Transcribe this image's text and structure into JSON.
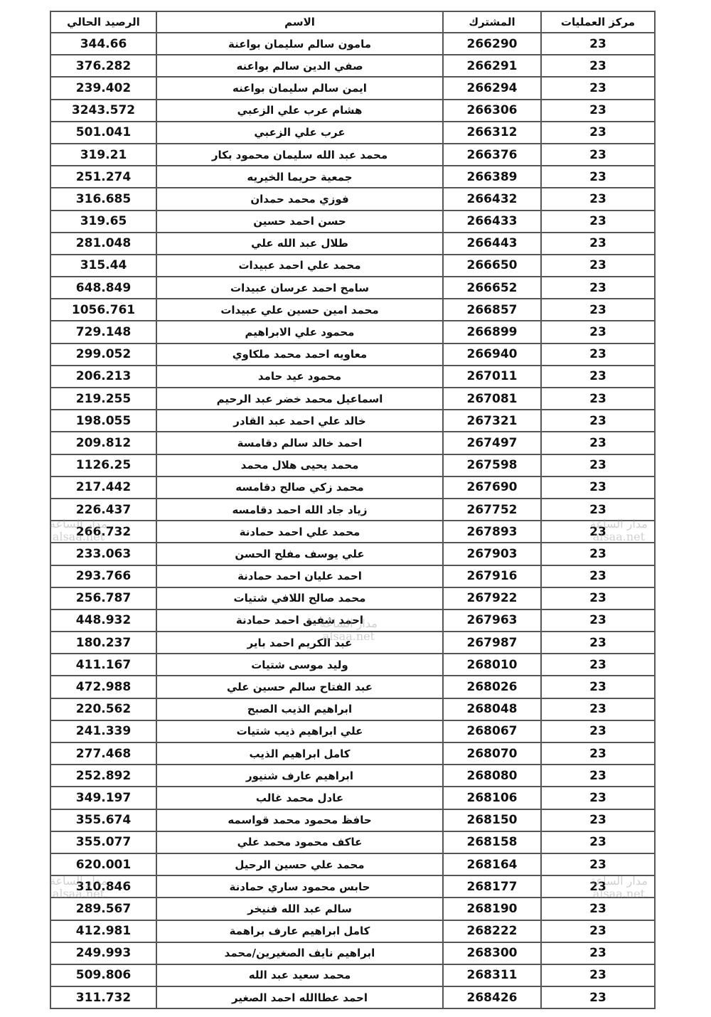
{
  "headers": {
    "center": "مركز العمليات",
    "subscriber": "المشترك",
    "name": "الاسم",
    "balance": "الرصيد الحالي"
  },
  "watermark": {
    "ar": "مدار الساعة",
    "en": "alsaa.net"
  },
  "rows": [
    {
      "center": "23",
      "subscriber": "266290",
      "name": "مامون سالم سليمان بواعنة",
      "balance": "344.66"
    },
    {
      "center": "23",
      "subscriber": "266291",
      "name": "صفي الدين سالم بواعنه",
      "balance": "376.282"
    },
    {
      "center": "23",
      "subscriber": "266294",
      "name": "ايمن سالم سليمان بواعنه",
      "balance": "239.402"
    },
    {
      "center": "23",
      "subscriber": "266306",
      "name": "هشام عرب علي الزعبي",
      "balance": "3243.572"
    },
    {
      "center": "23",
      "subscriber": "266312",
      "name": "عرب علي الزعبي",
      "balance": "501.041"
    },
    {
      "center": "23",
      "subscriber": "266376",
      "name": "محمد عبد الله سليمان محمود بكار",
      "balance": "319.21"
    },
    {
      "center": "23",
      "subscriber": "266389",
      "name": "جمعية حريما الخيريه",
      "balance": "251.274"
    },
    {
      "center": "23",
      "subscriber": "266432",
      "name": "فوزي محمد حمدان",
      "balance": "316.685"
    },
    {
      "center": "23",
      "subscriber": "266433",
      "name": "حسن احمد حسين",
      "balance": "319.65"
    },
    {
      "center": "23",
      "subscriber": "266443",
      "name": "طلال عبد الله علي",
      "balance": "281.048"
    },
    {
      "center": "23",
      "subscriber": "266650",
      "name": "محمد علي احمد عبيدات",
      "balance": "315.44"
    },
    {
      "center": "23",
      "subscriber": "266652",
      "name": "سامح احمد عرسان عبيدات",
      "balance": "648.849"
    },
    {
      "center": "23",
      "subscriber": "266857",
      "name": "محمد امين حسين علي عبيدات",
      "balance": "1056.761"
    },
    {
      "center": "23",
      "subscriber": "266899",
      "name": "محمود علي الابراهيم",
      "balance": "729.148"
    },
    {
      "center": "23",
      "subscriber": "266940",
      "name": "معاويه احمد محمد ملكاوي",
      "balance": "299.052"
    },
    {
      "center": "23",
      "subscriber": "267011",
      "name": "محمود عيد حامد",
      "balance": "206.213"
    },
    {
      "center": "23",
      "subscriber": "267081",
      "name": "اسماعيل محمد خضر عبد الرحيم",
      "balance": "219.255"
    },
    {
      "center": "23",
      "subscriber": "267321",
      "name": "خالد علي احمد عبد القادر",
      "balance": "198.055"
    },
    {
      "center": "23",
      "subscriber": "267497",
      "name": "احمد خالد سالم دقامسة",
      "balance": "209.812"
    },
    {
      "center": "23",
      "subscriber": "267598",
      "name": "محمد يحيى هلال محمد",
      "balance": "1126.25"
    },
    {
      "center": "23",
      "subscriber": "267690",
      "name": "محمد زكي صالح دقامسه",
      "balance": "217.442"
    },
    {
      "center": "23",
      "subscriber": "267752",
      "name": "زياد جاد الله احمد دقامسه",
      "balance": "226.437"
    },
    {
      "center": "23",
      "subscriber": "267893",
      "name": "محمد علي احمد حمادنة",
      "balance": "266.732"
    },
    {
      "center": "23",
      "subscriber": "267903",
      "name": "علي يوسف مفلح الحسن",
      "balance": "233.063"
    },
    {
      "center": "23",
      "subscriber": "267916",
      "name": "احمد عليان احمد حمادنة",
      "balance": "293.766"
    },
    {
      "center": "23",
      "subscriber": "267922",
      "name": "محمد صالح اللافي شتيات",
      "balance": "256.787"
    },
    {
      "center": "23",
      "subscriber": "267963",
      "name": "احمد شفيق احمد حمادنة",
      "balance": "448.932"
    },
    {
      "center": "23",
      "subscriber": "267987",
      "name": "عبد الكريم احمد باير",
      "balance": "180.237"
    },
    {
      "center": "23",
      "subscriber": "268010",
      "name": "وليد موسى شتيات",
      "balance": "411.167"
    },
    {
      "center": "23",
      "subscriber": "268026",
      "name": "عبد الفتاح سالم حسين علي",
      "balance": "472.988"
    },
    {
      "center": "23",
      "subscriber": "268048",
      "name": "ابراهيم الذيب الصبح",
      "balance": "220.562"
    },
    {
      "center": "23",
      "subscriber": "268067",
      "name": "علي ابراهيم ذيب شتيات",
      "balance": "241.339"
    },
    {
      "center": "23",
      "subscriber": "268070",
      "name": "كامل ابراهيم الذيب",
      "balance": "277.468"
    },
    {
      "center": "23",
      "subscriber": "268080",
      "name": "ابراهيم عارف شنيور",
      "balance": "252.892"
    },
    {
      "center": "23",
      "subscriber": "268106",
      "name": "عادل محمد غالب",
      "balance": "349.197"
    },
    {
      "center": "23",
      "subscriber": "268150",
      "name": "حافظ محمود محمد قواسمه",
      "balance": "355.674"
    },
    {
      "center": "23",
      "subscriber": "268158",
      "name": "عاكف محمود محمد علي",
      "balance": "355.077"
    },
    {
      "center": "23",
      "subscriber": "268164",
      "name": "محمد علي حسين الرحيل",
      "balance": "620.001"
    },
    {
      "center": "23",
      "subscriber": "268177",
      "name": "حابس محمود ساري حمادنة",
      "balance": "310.846"
    },
    {
      "center": "23",
      "subscriber": "268190",
      "name": "سالم عبد الله فنيخر",
      "balance": "289.567"
    },
    {
      "center": "23",
      "subscriber": "268222",
      "name": "كامل ابراهيم عارف براهمة",
      "balance": "412.981"
    },
    {
      "center": "23",
      "subscriber": "268300",
      "name": "ابراهيم نايف الصغيرين/محمد",
      "balance": "249.993"
    },
    {
      "center": "23",
      "subscriber": "268311",
      "name": "محمد سعيد عبد الله",
      "balance": "509.806"
    },
    {
      "center": "23",
      "subscriber": "268426",
      "name": "احمد عطاالله احمد الصغير",
      "balance": "311.732"
    }
  ]
}
